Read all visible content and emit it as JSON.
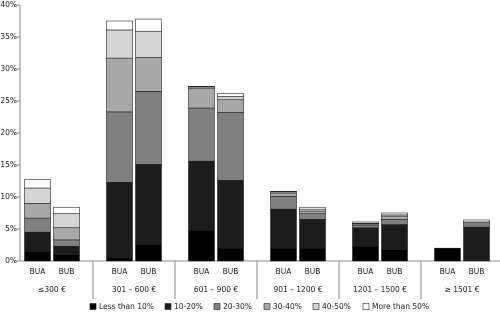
{
  "chart_data": {
    "type": "stacked-bar",
    "categories": [
      "BUA",
      "BUB",
      "BUA",
      "BUB",
      "BUA",
      "BUB",
      "BUA",
      "BUB",
      "BUA",
      "BUB",
      "BUA",
      "BUB"
    ],
    "groups": [
      "≤300 €",
      "301 – 600 €",
      "601 – 900 €",
      "901 – 1200 €",
      "1201 – 1500 €",
      "≥ 1501 €"
    ],
    "series": [
      {
        "name": "Less than 10%",
        "color": "#000000",
        "values": [
          1.5,
          1.0,
          0.5,
          2.6,
          4.8,
          2.0,
          2.0,
          2.0,
          2.3,
          1.8,
          2.0,
          0
        ]
      },
      {
        "name": "10-20%",
        "color": "#1c1c1c",
        "values": [
          3.0,
          1.3,
          11.8,
          12.5,
          10.8,
          10.6,
          6.1,
          4.5,
          2.9,
          3.9,
          0,
          5.3
        ]
      },
      {
        "name": "20-30%",
        "color": "#808080",
        "values": [
          2.2,
          1.0,
          11.0,
          11.4,
          8.3,
          10.6,
          2.0,
          0.9,
          0.4,
          0.8,
          0,
          0.8
        ]
      },
      {
        "name": "30-40%",
        "color": "#a8a8a8",
        "values": [
          2.3,
          1.9,
          8.4,
          5.3,
          3.1,
          2.0,
          0.5,
          0.4,
          0.2,
          0.5,
          0,
          0
        ]
      },
      {
        "name": "40-50%",
        "color": "#d4d4d4",
        "values": [
          2.4,
          2.2,
          4.4,
          4.1,
          0.2,
          0.5,
          0.2,
          0.3,
          0.1,
          0.2,
          0,
          0
        ]
      },
      {
        "name": "More than 50%",
        "color": "#ffffff",
        "values": [
          1.3,
          1.0,
          1.4,
          1.9,
          0.1,
          0.5,
          0.1,
          0.3,
          0.2,
          0.3,
          0,
          0.3
        ]
      }
    ],
    "ylim": [
      0,
      40
    ],
    "yticks": [
      {
        "value": 0,
        "label": "0%"
      },
      {
        "value": 5,
        "label": "5%"
      },
      {
        "value": 10,
        "label": "10%"
      },
      {
        "value": 15,
        "label": "15%"
      },
      {
        "value": 20,
        "label": "20%"
      },
      {
        "value": 25,
        "label": "25%"
      },
      {
        "value": 30,
        "label": "30%"
      },
      {
        "value": 35,
        "label": "35%"
      },
      {
        "value": 40,
        "label": "40%"
      }
    ],
    "grid": false
  }
}
